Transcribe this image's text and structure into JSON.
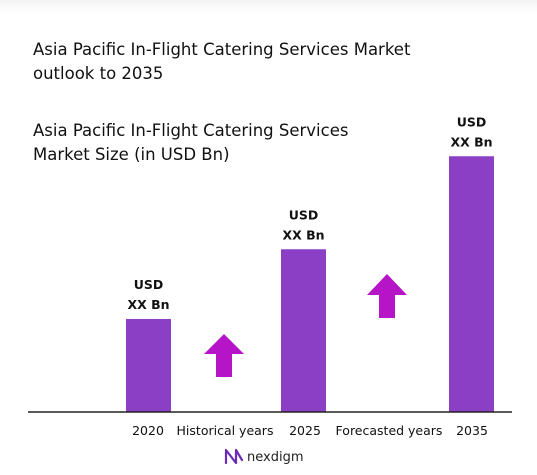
{
  "header": {
    "title_line1": "Asia Pacific In-Flight Catering Services Market",
    "title_line2": "outlook to 2035"
  },
  "chart_data": {
    "type": "bar",
    "title": "Asia Pacific In-Flight Catering Services Market Size (in USD Bn)",
    "subtitle_line1": "Asia Pacific In-Flight Catering Services",
    "subtitle_line2": "Market Size (in USD Bn)",
    "categories": [
      "2020",
      "2025",
      "2035"
    ],
    "values": [
      1.0,
      1.75,
      2.75
    ],
    "value_note": "relative bar heights; actual values not disclosed",
    "data_labels": [
      {
        "line1": "USD",
        "line2": "XX Bn"
      },
      {
        "line1": "USD",
        "line2": "XX Bn"
      },
      {
        "line1": "USD",
        "line2": "XX Bn"
      }
    ],
    "period_labels": [
      "Historical years",
      "Forecasted years"
    ],
    "grid": false,
    "legend": "none",
    "colors": {
      "bar": "#8B3FC4",
      "arrow": "#B514C7",
      "axis": "#222222"
    }
  },
  "footer": {
    "logo_text": "nexdigm",
    "logo_icon": "nexdigm-logo-icon",
    "logo_color": "#6A2BB5"
  }
}
